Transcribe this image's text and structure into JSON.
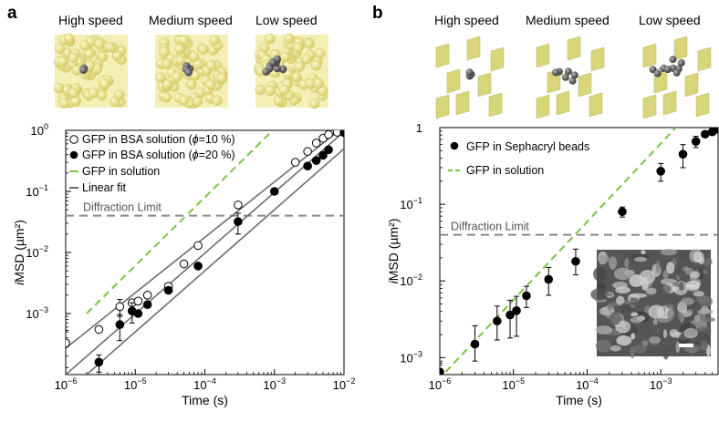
{
  "panels": [
    {
      "label": "a",
      "speed_labels": [
        "High speed",
        "Medium speed",
        "Low speed"
      ]
    },
    {
      "label": "b",
      "speed_labels": [
        "High speed",
        "Medium speed",
        "Low speed"
      ]
    }
  ],
  "colors": {
    "green": "#7dc242",
    "gray_line": "#6d6d6d",
    "limit": "#888888",
    "sphere": "#e6e08c"
  },
  "chart_data": [
    {
      "type": "scatter",
      "xlabel": "Time (s)",
      "ylabel_prefix": "i",
      "ylabel": "MSD (µm²)",
      "x_scale": "log",
      "y_scale": "log",
      "xlim": [
        1e-06,
        0.01
      ],
      "ylim": [
        0.0001,
        1
      ],
      "x_ticks": [
        1e-06,
        1e-05,
        0.0001,
        0.001,
        0.01
      ],
      "x_tick_exponents": [
        "−6",
        "−5",
        "−4",
        "−3",
        "−2"
      ],
      "y_ticks": [
        0.001,
        0.01,
        0.1,
        1
      ],
      "y_tick_labels": [
        {
          "base": "10",
          "exp": "−3"
        },
        {
          "base": "10",
          "exp": "−2"
        },
        {
          "base": "10",
          "exp": "−1"
        },
        {
          "base": "10",
          "exp": "0"
        }
      ],
      "diffraction_limit": {
        "label": "Diffraction Limit",
        "y": 0.04
      },
      "legend": [
        {
          "text": "GFP in BSA solution (ϕ=10 %)",
          "marker": "open-circle"
        },
        {
          "text": "GFP in BSA solution (ϕ=20 %)",
          "marker": "filled-circle"
        },
        {
          "text": "GFP in solution",
          "marker": "green-line"
        },
        {
          "text": "Linear fit",
          "marker": "gray-line"
        }
      ],
      "series": [
        {
          "name": "GFP in BSA solution (ϕ=10 %)",
          "marker": "open",
          "points": [
            {
              "x": 1e-06,
              "y": 0.00033,
              "err": 0.0002
            },
            {
              "x": 3e-06,
              "y": 0.00055
            },
            {
              "x": 6e-06,
              "y": 0.0013,
              "err": 0.0004
            },
            {
              "x": 9e-06,
              "y": 0.0015
            },
            {
              "x": 1.1e-05,
              "y": 0.0016
            },
            {
              "x": 1.5e-05,
              "y": 0.002
            },
            {
              "x": 3e-05,
              "y": 0.0028
            },
            {
              "x": 5e-05,
              "y": 0.0065
            },
            {
              "x": 8e-05,
              "y": 0.013
            },
            {
              "x": 0.0003,
              "y": 0.06
            },
            {
              "x": 0.002,
              "y": 0.3
            },
            {
              "x": 0.003,
              "y": 0.45
            },
            {
              "x": 0.004,
              "y": 0.62
            },
            {
              "x": 0.005,
              "y": 0.74
            },
            {
              "x": 0.006,
              "y": 0.85
            },
            {
              "x": 0.008,
              "y": 0.93
            }
          ]
        },
        {
          "name": "GFP in BSA solution (ϕ=20 %)",
          "marker": "filled",
          "points": [
            {
              "x": 3e-06,
              "y": 0.00016,
              "err": 5e-05
            },
            {
              "x": 6e-06,
              "y": 0.00066,
              "err": 0.0003
            },
            {
              "x": 9e-06,
              "y": 0.0011,
              "err": 0.0004
            },
            {
              "x": 1.1e-05,
              "y": 0.001
            },
            {
              "x": 1.5e-05,
              "y": 0.0014
            },
            {
              "x": 3e-05,
              "y": 0.0024
            },
            {
              "x": 8e-05,
              "y": 0.006
            },
            {
              "x": 0.0003,
              "y": 0.032,
              "err": 0.012
            },
            {
              "x": 0.001,
              "y": 0.1
            },
            {
              "x": 0.003,
              "y": 0.26
            },
            {
              "x": 0.004,
              "y": 0.32
            },
            {
              "x": 0.005,
              "y": 0.39
            },
            {
              "x": 0.006,
              "y": 0.48
            },
            {
              "x": 0.01,
              "y": 0.92
            }
          ]
        }
      ],
      "fit_lines": [
        {
          "from": {
            "x": 1e-06,
            "y": 0.00027
          },
          "to": {
            "x": 0.0085,
            "y": 1
          }
        },
        {
          "from": {
            "x": 1e-06,
            "y": 0.0001
          },
          "to": {
            "x": 0.01,
            "y": 0.95
          }
        },
        {
          "from": {
            "x": 2e-06,
            "y": 0.0001
          },
          "to": {
            "x": 0.01,
            "y": 0.5
          }
        }
      ],
      "green_line": {
        "from": {
          "x": 2e-06,
          "y": 0.001
        },
        "to": {
          "x": 0.00095,
          "y": 1
        }
      }
    },
    {
      "type": "scatter",
      "xlabel": "Time (s)",
      "ylabel_prefix": "i",
      "ylabel": "MSD (µm²)",
      "x_scale": "log",
      "y_scale": "log",
      "xlim": [
        1e-06,
        0.006
      ],
      "ylim": [
        0.0006,
        1
      ],
      "x_ticks": [
        1e-06,
        1e-05,
        0.0001,
        0.001
      ],
      "x_tick_exponents": [
        "−6",
        "−5",
        "−4",
        "−3"
      ],
      "y_ticks": [
        0.001,
        0.01,
        0.1,
        1
      ],
      "y_tick_labels": [
        {
          "base": "10",
          "exp": "−3"
        },
        {
          "base": "10",
          "exp": "−2"
        },
        {
          "base": "10",
          "exp": "−1"
        },
        {
          "base": "1",
          "exp": "0"
        }
      ],
      "diffraction_limit": {
        "label": "Diffraction Limit",
        "y": 0.04
      },
      "legend": [
        {
          "text": "GFP in Sephacryl beads",
          "marker": "filled-circle"
        },
        {
          "text": "GFP in solution",
          "marker": "green-dash"
        }
      ],
      "series": [
        {
          "name": "GFP in Sephacryl beads",
          "marker": "filled",
          "points": [
            {
              "x": 1e-06,
              "y": 0.00065,
              "err_lo": 0.00045,
              "err_hi": 0.00085
            },
            {
              "x": 3e-06,
              "y": 0.0015,
              "err_lo": 0.0009,
              "err_hi": 0.0026
            },
            {
              "x": 6e-06,
              "y": 0.003,
              "err_lo": 0.0017,
              "err_hi": 0.0047
            },
            {
              "x": 9e-06,
              "y": 0.0036,
              "err_lo": 0.0018,
              "err_hi": 0.0056
            },
            {
              "x": 1.1e-05,
              "y": 0.0041,
              "err_lo": 0.0019,
              "err_hi": 0.0063
            },
            {
              "x": 1.5e-05,
              "y": 0.0064,
              "err_lo": 0.0045,
              "err_hi": 0.0085
            },
            {
              "x": 3e-05,
              "y": 0.0105,
              "err_lo": 0.0065,
              "err_hi": 0.015
            },
            {
              "x": 7e-05,
              "y": 0.018,
              "err_lo": 0.012,
              "err_hi": 0.026
            },
            {
              "x": 0.0003,
              "y": 0.08,
              "err_lo": 0.068,
              "err_hi": 0.092
            },
            {
              "x": 0.001,
              "y": 0.27,
              "err_lo": 0.2,
              "err_hi": 0.34
            },
            {
              "x": 0.002,
              "y": 0.45,
              "err_lo": 0.3,
              "err_hi": 0.6
            },
            {
              "x": 0.003,
              "y": 0.66,
              "err_lo": 0.55,
              "err_hi": 0.77
            },
            {
              "x": 0.004,
              "y": 0.82
            },
            {
              "x": 0.005,
              "y": 0.88
            },
            {
              "x": 0.006,
              "y": 0.95
            }
          ]
        }
      ],
      "green_line": {
        "from": {
          "x": 1.2e-06,
          "y": 0.00065
        },
        "to": {
          "x": 0.0016,
          "y": 1
        }
      }
    }
  ]
}
